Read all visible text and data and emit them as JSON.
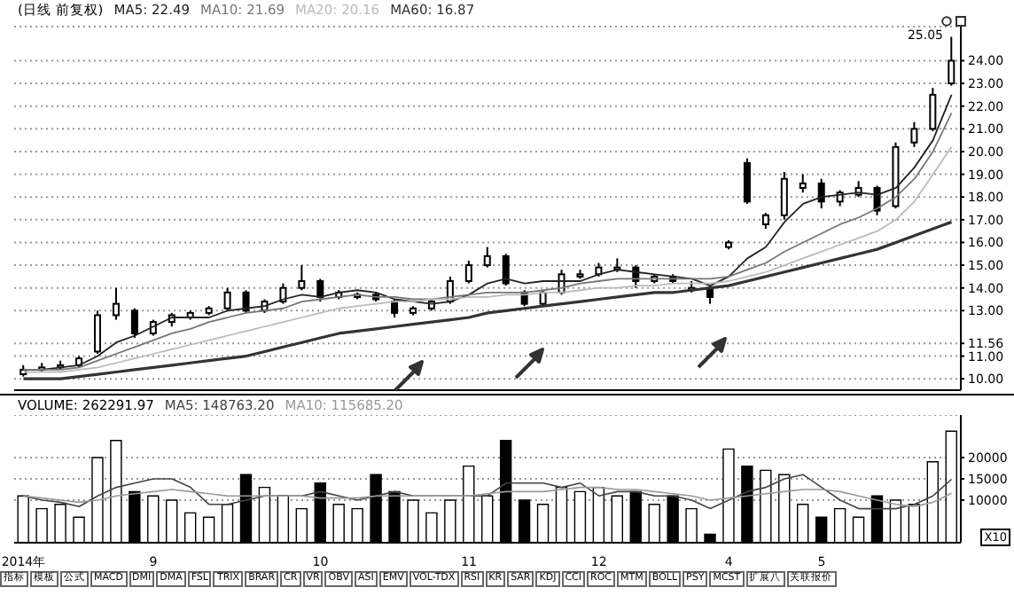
{
  "chart_data": [
    {
      "type": "candlestick",
      "title": "(日线 前复权)",
      "color": "#000000",
      "categories": [
        null,
        null,
        null,
        null,
        null,
        null,
        null,
        null,
        null,
        null,
        null,
        null,
        null,
        null,
        null,
        null,
        null,
        null,
        null,
        null,
        null,
        null,
        null,
        null,
        null,
        null,
        null,
        null,
        null,
        null,
        null,
        null,
        null,
        null,
        null,
        null,
        null,
        null,
        null,
        null,
        null,
        null,
        null,
        null,
        null,
        null,
        null,
        null,
        null,
        null,
        null
      ],
      "ohlc": [
        [
          10.2,
          10.6,
          10.1,
          10.4
        ],
        [
          10.4,
          10.7,
          10.3,
          10.5
        ],
        [
          10.5,
          10.8,
          10.4,
          10.6
        ],
        [
          10.6,
          11.0,
          10.5,
          10.9
        ],
        [
          11.2,
          13.0,
          11.1,
          12.8
        ],
        [
          12.8,
          14.0,
          12.6,
          13.3
        ],
        [
          13.0,
          13.1,
          11.8,
          12.0
        ],
        [
          12.0,
          12.6,
          11.9,
          12.5
        ],
        [
          12.5,
          12.9,
          12.3,
          12.8
        ],
        [
          12.7,
          13.0,
          12.6,
          12.9
        ],
        [
          12.9,
          13.2,
          12.8,
          13.1
        ],
        [
          13.1,
          14.0,
          13.0,
          13.8
        ],
        [
          13.8,
          13.9,
          12.9,
          13.0
        ],
        [
          13.0,
          13.5,
          12.9,
          13.4
        ],
        [
          13.4,
          14.2,
          13.3,
          14.0
        ],
        [
          14.0,
          15.0,
          13.9,
          14.3
        ],
        [
          14.3,
          14.4,
          13.4,
          13.6
        ],
        [
          13.6,
          13.9,
          13.5,
          13.8
        ],
        [
          13.6,
          13.8,
          13.5,
          13.7
        ],
        [
          13.7,
          13.8,
          13.4,
          13.5
        ],
        [
          13.4,
          13.5,
          12.7,
          12.9
        ],
        [
          12.9,
          13.2,
          12.8,
          13.1
        ],
        [
          13.1,
          13.5,
          13.0,
          13.4
        ],
        [
          13.4,
          14.5,
          13.3,
          14.3
        ],
        [
          14.3,
          15.2,
          14.2,
          15.0
        ],
        [
          15.0,
          15.8,
          14.9,
          15.4
        ],
        [
          15.4,
          15.5,
          14.1,
          14.2
        ],
        [
          13.8,
          13.9,
          13.2,
          13.3
        ],
        [
          13.3,
          13.9,
          13.2,
          13.8
        ],
        [
          13.8,
          14.8,
          13.7,
          14.6
        ],
        [
          14.5,
          14.8,
          14.4,
          14.6
        ],
        [
          14.6,
          15.1,
          14.5,
          14.9
        ],
        [
          14.8,
          15.3,
          14.7,
          14.9
        ],
        [
          14.9,
          15.0,
          14.0,
          14.3
        ],
        [
          14.3,
          14.6,
          14.2,
          14.5
        ],
        [
          14.5,
          14.6,
          14.2,
          14.3
        ],
        [
          13.9,
          14.3,
          13.8,
          14.0
        ],
        [
          14.0,
          14.1,
          13.3,
          13.6
        ],
        [
          15.8,
          16.1,
          15.7,
          16.0
        ],
        [
          19.5,
          19.7,
          17.7,
          17.8
        ],
        [
          16.8,
          17.3,
          16.6,
          17.2
        ],
        [
          17.2,
          19.1,
          17.0,
          18.8
        ],
        [
          18.4,
          19.0,
          18.2,
          18.6
        ],
        [
          18.6,
          18.8,
          17.5,
          17.8
        ],
        [
          17.8,
          18.3,
          17.6,
          18.2
        ],
        [
          18.1,
          18.7,
          18.0,
          18.4
        ],
        [
          18.4,
          18.5,
          17.2,
          17.4
        ],
        [
          17.6,
          20.4,
          17.5,
          20.2
        ],
        [
          20.4,
          21.3,
          20.2,
          21.0
        ],
        [
          21.0,
          22.8,
          20.9,
          22.5
        ],
        [
          23.0,
          25.05,
          22.9,
          24.0
        ]
      ],
      "series": [
        {
          "name": "MA5: 22.49",
          "type": "line",
          "color": "#222222",
          "values": [
            10.4,
            10.4,
            10.5,
            10.6,
            11.0,
            11.6,
            11.9,
            12.3,
            12.7,
            12.7,
            12.7,
            13.0,
            13.1,
            13.2,
            13.5,
            13.7,
            13.6,
            13.8,
            13.9,
            13.8,
            13.5,
            13.4,
            13.3,
            13.4,
            13.7,
            14.2,
            14.4,
            14.2,
            14.3,
            14.3,
            14.3,
            14.6,
            14.8,
            14.7,
            14.6,
            14.5,
            14.4,
            14.1,
            14.5,
            15.3,
            15.8,
            16.9,
            17.7,
            18.0,
            18.1,
            18.2,
            18.1,
            18.4,
            19.3,
            20.5,
            22.5
          ]
        },
        {
          "name": "MA10: 21.69",
          "type": "line",
          "color": "#777777",
          "values": [
            10.4,
            10.4,
            10.4,
            10.5,
            10.8,
            11.1,
            11.4,
            11.7,
            12.0,
            12.2,
            12.5,
            12.7,
            12.9,
            13.0,
            13.1,
            13.4,
            13.5,
            13.6,
            13.7,
            13.6,
            13.6,
            13.5,
            13.5,
            13.6,
            13.7,
            13.8,
            13.8,
            13.8,
            13.9,
            14.0,
            14.2,
            14.3,
            14.4,
            14.4,
            14.4,
            14.4,
            14.4,
            14.4,
            14.5,
            14.8,
            15.1,
            15.6,
            16.0,
            16.4,
            16.8,
            17.1,
            17.5,
            18.0,
            18.8,
            20.0,
            21.7
          ]
        },
        {
          "name": "MA20: 20.16",
          "type": "line",
          "color": "#bbbbbb",
          "values": [
            10.3,
            10.3,
            10.3,
            10.4,
            10.5,
            10.7,
            10.9,
            11.1,
            11.3,
            11.5,
            11.7,
            11.9,
            12.1,
            12.3,
            12.5,
            12.7,
            12.9,
            13.1,
            13.2,
            13.3,
            13.4,
            13.4,
            13.5,
            13.5,
            13.6,
            13.6,
            13.7,
            13.7,
            13.8,
            13.8,
            13.9,
            14.0,
            14.0,
            14.1,
            14.1,
            14.2,
            14.2,
            14.2,
            14.3,
            14.5,
            14.7,
            15.0,
            15.3,
            15.6,
            15.9,
            16.2,
            16.5,
            17.0,
            17.8,
            19.0,
            20.2
          ]
        },
        {
          "name": "MA60: 16.87",
          "type": "line",
          "color": "#333333",
          "values": [
            10.0,
            10.0,
            10.0,
            10.1,
            10.2,
            10.3,
            10.4,
            10.5,
            10.6,
            10.7,
            10.8,
            10.9,
            11.0,
            11.2,
            11.4,
            11.6,
            11.8,
            12.0,
            12.1,
            12.2,
            12.3,
            12.4,
            12.5,
            12.6,
            12.7,
            12.9,
            13.0,
            13.1,
            13.2,
            13.3,
            13.4,
            13.5,
            13.6,
            13.7,
            13.8,
            13.8,
            13.9,
            14.0,
            14.1,
            14.3,
            14.5,
            14.7,
            14.9,
            15.1,
            15.3,
            15.5,
            15.7,
            16.0,
            16.3,
            16.6,
            16.9
          ]
        }
      ],
      "ylim": [
        9.5,
        25.5
      ],
      "yticks": [
        {
          "value": 10,
          "label": "10.00"
        },
        {
          "value": 11,
          "label": "11.00"
        },
        {
          "value": 11.56,
          "label": "11.56"
        },
        {
          "value": 13,
          "label": "13.00"
        },
        {
          "value": 14,
          "label": "14.00"
        },
        {
          "value": 15,
          "label": "15.00"
        },
        {
          "value": 16,
          "label": "16.00"
        },
        {
          "value": 17,
          "label": "17.00"
        },
        {
          "value": 18,
          "label": "18.00"
        },
        {
          "value": 19,
          "label": "19.00"
        },
        {
          "value": 20,
          "label": "20.00"
        },
        {
          "value": 21,
          "label": "21.00"
        },
        {
          "value": 22,
          "label": "22.00"
        },
        {
          "value": 23,
          "label": "23.00"
        },
        {
          "value": 24,
          "label": "24.00"
        }
      ],
      "grid": "y",
      "legend": "top left",
      "tick_labels": "y",
      "annotations": [
        "25.05"
      ]
    },
    {
      "type": "bar",
      "color": "#000000",
      "categories": [
        "2014年",
        null,
        null,
        null,
        null,
        null,
        null,
        "9",
        null,
        null,
        null,
        null,
        null,
        null,
        null,
        null,
        "10",
        null,
        null,
        null,
        null,
        null,
        null,
        null,
        "11",
        null,
        null,
        null,
        null,
        null,
        null,
        "12",
        null,
        null,
        null,
        null,
        null,
        null,
        "4",
        null,
        null,
        null,
        null,
        "5",
        null,
        null,
        null,
        null,
        null,
        null,
        null
      ],
      "series": [
        {
          "name": "VOLUME: 262291.97",
          "type": "bar",
          "color": "#000000",
          "colors": [
            "#ffffff",
            "#ffffff",
            "#ffffff",
            "#ffffff",
            "#ffffff",
            "#ffffff",
            "#000000",
            "#ffffff",
            "#ffffff",
            "#ffffff",
            "#ffffff",
            "#ffffff",
            "#000000",
            "#ffffff",
            "#ffffff",
            "#ffffff",
            "#000000",
            "#ffffff",
            "#ffffff",
            "#000000",
            "#000000",
            "#ffffff",
            "#ffffff",
            "#ffffff",
            "#ffffff",
            "#ffffff",
            "#000000",
            "#000000",
            "#ffffff",
            "#ffffff",
            "#ffffff",
            "#ffffff",
            "#ffffff",
            "#000000",
            "#ffffff",
            "#000000",
            "#ffffff",
            "#000000",
            "#ffffff",
            "#000000",
            "#ffffff",
            "#ffffff",
            "#ffffff",
            "#000000",
            "#ffffff",
            "#ffffff",
            "#000000",
            "#ffffff",
            "#ffffff",
            "#ffffff",
            "#ffffff"
          ],
          "values": [
            11000,
            8000,
            9000,
            6000,
            20000,
            24000,
            12000,
            11000,
            10000,
            7000,
            6000,
            9000,
            16000,
            13000,
            11000,
            8000,
            14000,
            9000,
            8000,
            16000,
            12000,
            10000,
            7000,
            10000,
            18000,
            11000,
            24000,
            10000,
            9000,
            13000,
            12000,
            13000,
            11000,
            12000,
            9000,
            11000,
            8000,
            2000,
            22000,
            18000,
            17000,
            16000,
            9000,
            6000,
            8000,
            6000,
            11000,
            10000,
            9000,
            19000,
            26200
          ]
        },
        {
          "name": "MA5: 148763.20",
          "type": "line",
          "color": "#444444",
          "values": [
            11000,
            10000,
            9500,
            8500,
            11000,
            13000,
            14000,
            15000,
            15000,
            13000,
            9000,
            9000,
            10000,
            11000,
            11000,
            11000,
            12000,
            11000,
            10000,
            11000,
            12000,
            11000,
            11000,
            11000,
            11000,
            11000,
            14000,
            14000,
            14000,
            13000,
            14000,
            11000,
            12000,
            12000,
            11000,
            11000,
            10000,
            8000,
            10000,
            12000,
            13000,
            15000,
            16000,
            13000,
            10000,
            8000,
            8000,
            8000,
            9000,
            11000,
            14900
          ]
        },
        {
          "name": "MA10: 115685.20",
          "type": "line",
          "color": "#999999",
          "values": [
            11000,
            10500,
            10000,
            9500,
            10000,
            11000,
            11500,
            12000,
            12500,
            12000,
            11500,
            11000,
            11000,
            11000,
            11000,
            11000,
            10500,
            10500,
            10500,
            11000,
            11000,
            11000,
            11000,
            11000,
            11000,
            11500,
            12000,
            12000,
            12000,
            12500,
            13000,
            13000,
            12500,
            12500,
            12000,
            11500,
            11000,
            10000,
            10500,
            11000,
            11500,
            12000,
            12500,
            12500,
            12000,
            11000,
            10000,
            9000,
            8500,
            9500,
            11600
          ]
        }
      ],
      "ylim": [
        0,
        30000
      ],
      "yticks": [
        10000,
        15000,
        20000
      ],
      "grid": "y",
      "legend": "top left",
      "annotations": [
        "X10",
        "指标",
        "模板",
        "公式",
        "MACD",
        "DMI",
        "DMA",
        "FSL",
        "TRIX",
        "BRAR",
        "CR",
        "VR",
        "OBV",
        "ASI",
        "EMV",
        "VOL-TDX",
        "RSI",
        "KR",
        "SAR",
        "KDJ",
        "CCI",
        "ROC",
        "MTM",
        "BOLL",
        "PSY",
        "MCST",
        "扩展八",
        "关联报价"
      ]
    }
  ]
}
